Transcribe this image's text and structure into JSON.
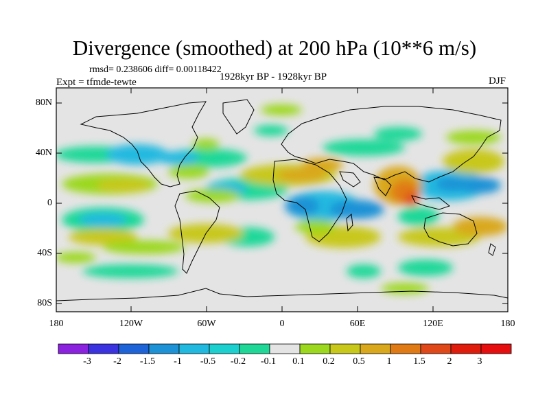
{
  "title": "Divergence (smoothed) at 200 hPa (10**6 m/s)",
  "stats": "rmsd= 0.238606 diff= 0.00118422",
  "experiment": "Expt = tfmde-tewte",
  "period": "1928kyr BP - 1928kyr BP",
  "season": "DJF",
  "lat_labels": [
    "80N",
    "40N",
    "0",
    "40S",
    "80S"
  ],
  "lon_labels": [
    "180",
    "120W",
    "60W",
    "0",
    "60E",
    "120E",
    "180"
  ],
  "colorbar": {
    "labels": [
      "-3",
      "-2",
      "-1.5",
      "-1",
      "-0.5",
      "-0.2",
      "-0.1",
      "0.1",
      "0.2",
      "0.5",
      "1",
      "1.5",
      "2",
      "3"
    ],
    "colors": [
      "#8b22e0",
      "#3b33e0",
      "#1f63d8",
      "#1e92d6",
      "#22b9e0",
      "#1dd0d0",
      "#1fd898",
      "#e4e4e4",
      "#9bd81e",
      "#c8c81a",
      "#d9a81c",
      "#e07a14",
      "#e0481a",
      "#e01c0c",
      "#e60e0e"
    ]
  }
}
